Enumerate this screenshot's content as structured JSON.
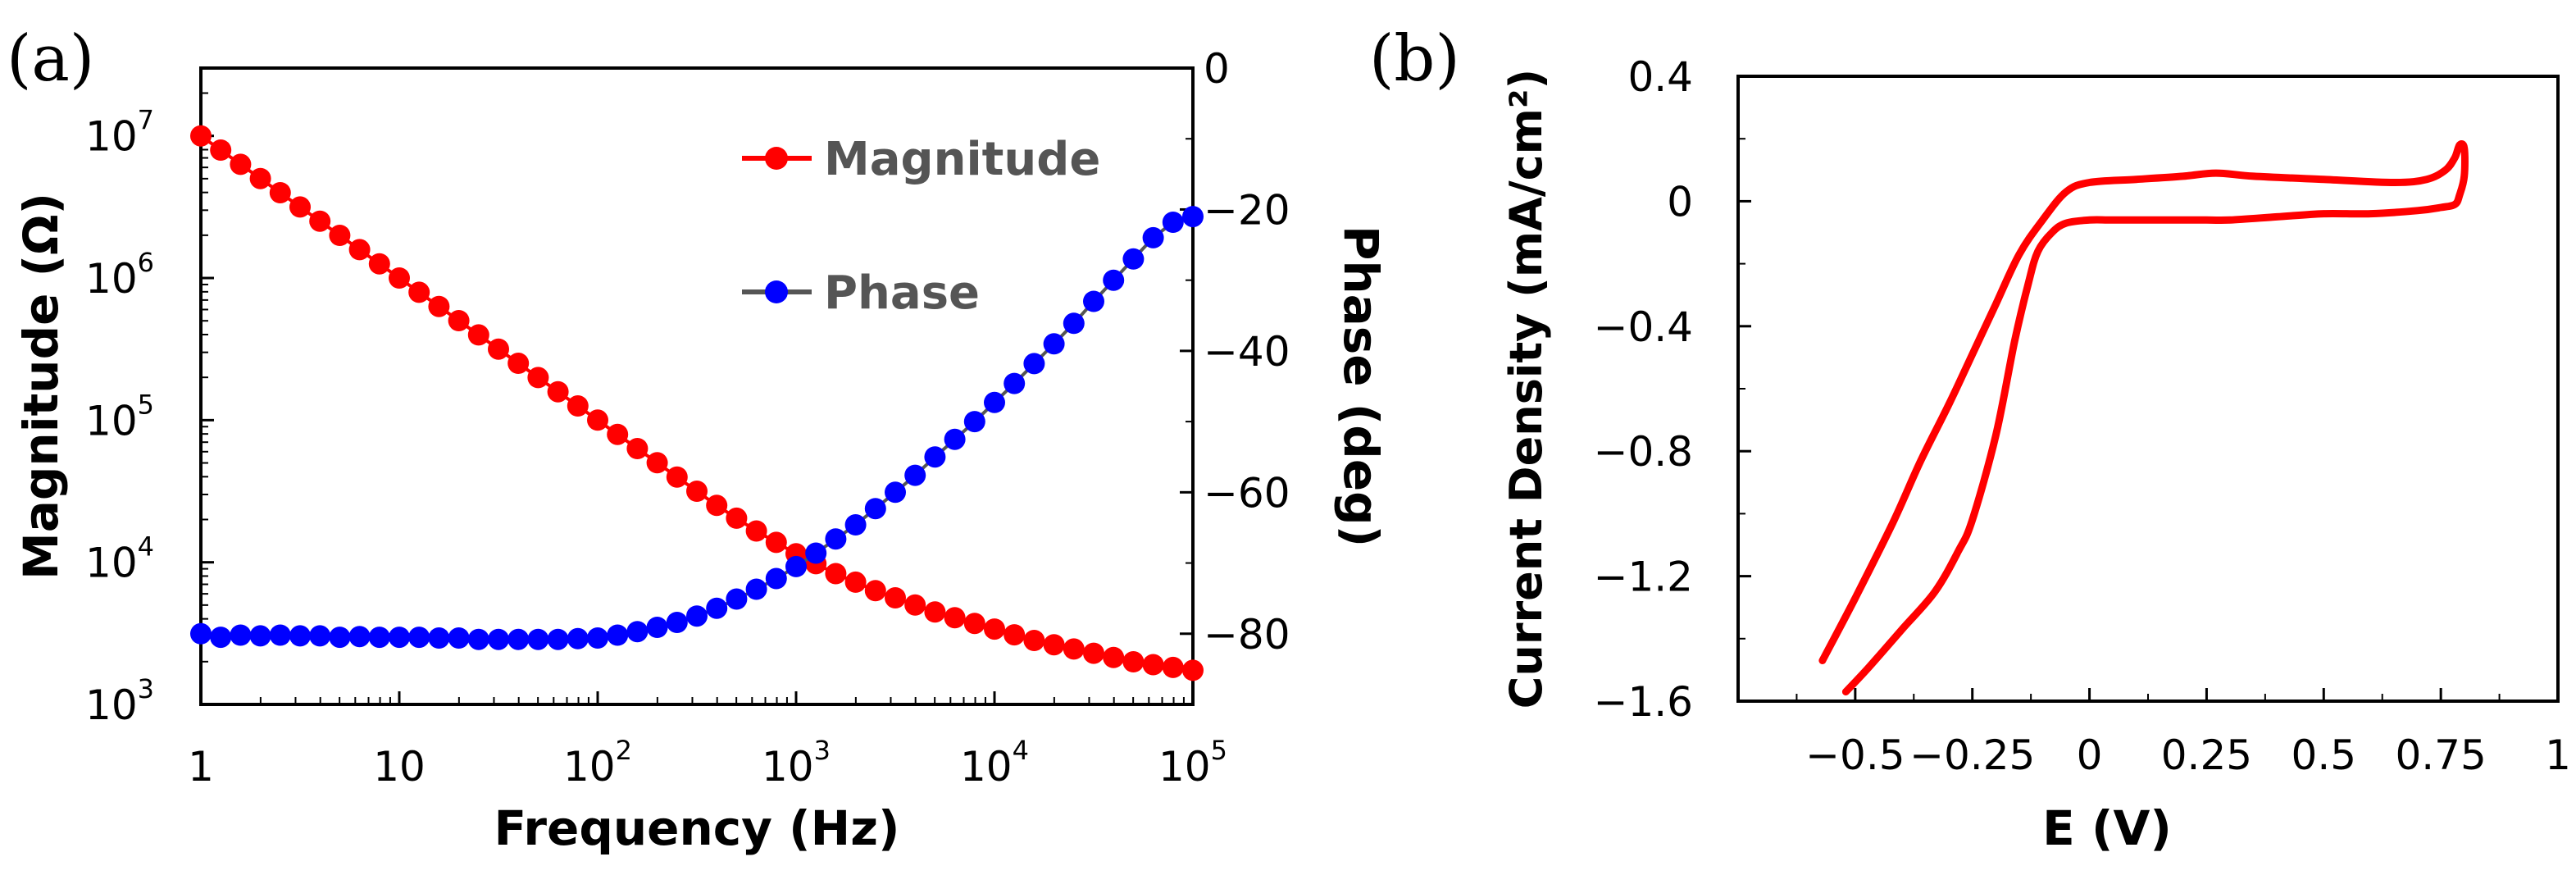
{
  "panel_labels": {
    "a": "(a)",
    "b": "(b)"
  },
  "colors": {
    "magnitude": "#ff0000",
    "phase": "#0000ff",
    "cv": "#ff0000",
    "axis": "#000000",
    "legend_text": "#555555"
  },
  "chart_data": [
    {
      "id": "a",
      "type": "line",
      "x_scale": "log",
      "y_scale_left": "log",
      "xlabel": "Frequency (Hz)",
      "ylabel": "Magnitude (Ω)",
      "y2label": "Phase (deg)",
      "xlim": [
        1,
        100000
      ],
      "ylim": [
        1000,
        30000000
      ],
      "y2lim": [
        -90,
        0
      ],
      "x_ticks": [
        {
          "v": 1,
          "base": "1",
          "exp": ""
        },
        {
          "v": 10,
          "base": "10",
          "exp": ""
        },
        {
          "v": 100,
          "base": "10",
          "exp": "2"
        },
        {
          "v": 1000,
          "base": "10",
          "exp": "3"
        },
        {
          "v": 10000,
          "base": "10",
          "exp": "4"
        },
        {
          "v": 100000,
          "base": "10",
          "exp": "5"
        }
      ],
      "y_ticks": [
        {
          "v": 1000,
          "base": "10",
          "exp": "3"
        },
        {
          "v": 10000,
          "base": "10",
          "exp": "4"
        },
        {
          "v": 100000,
          "base": "10",
          "exp": "5"
        },
        {
          "v": 1000000,
          "base": "10",
          "exp": "6"
        },
        {
          "v": 10000000,
          "base": "10",
          "exp": "7"
        }
      ],
      "y2_ticks": [
        {
          "v": 0,
          "label": "0"
        },
        {
          "v": -20,
          "label": "−20"
        },
        {
          "v": -40,
          "label": "−40"
        },
        {
          "v": -60,
          "label": "−60"
        },
        {
          "v": -80,
          "label": "−80"
        }
      ],
      "legend_position": "top-right",
      "series": [
        {
          "name": "Magnitude",
          "axis": "left",
          "color": "#ff0000",
          "x_log10": [
            0,
            0.1,
            0.2,
            0.3,
            0.4,
            0.5,
            0.6,
            0.7,
            0.8,
            0.9,
            1.0,
            1.1,
            1.2,
            1.3,
            1.4,
            1.5,
            1.6,
            1.7,
            1.8,
            1.9,
            2.0,
            2.1,
            2.2,
            2.3,
            2.4,
            2.5,
            2.6,
            2.7,
            2.8,
            2.9,
            3.0,
            3.1,
            3.2,
            3.3,
            3.4,
            3.5,
            3.6,
            3.7,
            3.8,
            3.9,
            4.0,
            4.1,
            4.2,
            4.3,
            4.4,
            4.5,
            4.6,
            4.7,
            4.8,
            4.9,
            5.0
          ],
          "y_log10": [
            7.0,
            6.9,
            6.8,
            6.7,
            6.6,
            6.5,
            6.4,
            6.3,
            6.2,
            6.1,
            6.0,
            5.9,
            5.8,
            5.7,
            5.6,
            5.5,
            5.4,
            5.3,
            5.2,
            5.1,
            5.0,
            4.9,
            4.8,
            4.7,
            4.6,
            4.5,
            4.4,
            4.31,
            4.22,
            4.14,
            4.06,
            3.99,
            3.92,
            3.86,
            3.8,
            3.75,
            3.7,
            3.65,
            3.61,
            3.57,
            3.53,
            3.49,
            3.45,
            3.42,
            3.39,
            3.36,
            3.33,
            3.3,
            3.28,
            3.26,
            3.24
          ]
        },
        {
          "name": "Phase",
          "axis": "right",
          "color": "#0000ff",
          "x_log10": [
            0,
            0.1,
            0.2,
            0.3,
            0.4,
            0.5,
            0.6,
            0.7,
            0.8,
            0.9,
            1.0,
            1.1,
            1.2,
            1.3,
            1.4,
            1.5,
            1.6,
            1.7,
            1.8,
            1.9,
            2.0,
            2.1,
            2.2,
            2.3,
            2.4,
            2.5,
            2.6,
            2.7,
            2.8,
            2.9,
            3.0,
            3.1,
            3.2,
            3.3,
            3.4,
            3.5,
            3.6,
            3.7,
            3.8,
            3.9,
            4.0,
            4.1,
            4.2,
            4.3,
            4.4,
            4.5,
            4.6,
            4.7,
            4.8,
            4.9,
            5.0
          ],
          "y": [
            -80.0,
            -80.5,
            -80.2,
            -80.3,
            -80.2,
            -80.3,
            -80.3,
            -80.5,
            -80.4,
            -80.5,
            -80.5,
            -80.5,
            -80.6,
            -80.6,
            -80.8,
            -80.8,
            -80.8,
            -80.8,
            -80.8,
            -80.7,
            -80.6,
            -80.2,
            -79.7,
            -79.1,
            -78.4,
            -77.5,
            -76.4,
            -75.1,
            -73.7,
            -72.2,
            -70.5,
            -68.6,
            -66.6,
            -64.6,
            -62.3,
            -60.0,
            -57.6,
            -55.0,
            -52.5,
            -50.0,
            -47.3,
            -44.6,
            -41.8,
            -39.0,
            -36.1,
            -33.0,
            -30.0,
            -27.0,
            -24.0,
            -21.8,
            -21.0
          ]
        }
      ]
    },
    {
      "id": "b",
      "type": "line",
      "xlabel": "E (V)",
      "ylabel": "Current Density (mA/cm²)",
      "xlim": [
        -0.75,
        1.0
      ],
      "ylim": [
        -1.6,
        0.4
      ],
      "x_ticks": [
        {
          "v": -0.5,
          "label": "−0.5"
        },
        {
          "v": -0.25,
          "label": "−0.25"
        },
        {
          "v": 0,
          "label": "0"
        },
        {
          "v": 0.25,
          "label": "0.25"
        },
        {
          "v": 0.5,
          "label": "0.5"
        },
        {
          "v": 0.75,
          "label": "0.75"
        },
        {
          "v": 1.0,
          "label": "1"
        }
      ],
      "y_ticks": [
        {
          "v": 0.4,
          "label": "0.4"
        },
        {
          "v": 0,
          "label": "0"
        },
        {
          "v": -0.4,
          "label": "−0.4"
        },
        {
          "v": -0.8,
          "label": "−0.8"
        },
        {
          "v": -1.2,
          "label": "−1.2"
        },
        {
          "v": -1.6,
          "label": "−1.6"
        }
      ],
      "series": [
        {
          "color": "#ff0000",
          "x": [
            -0.57,
            -0.5,
            -0.42,
            -0.36,
            -0.3,
            -0.25,
            -0.2,
            -0.15,
            -0.1,
            -0.05,
            0.0,
            0.1,
            0.2,
            0.27,
            0.35,
            0.5,
            0.65,
            0.72,
            0.76,
            0.78,
            0.79,
            0.8,
            0.8,
            0.79,
            0.78,
            0.75,
            0.7,
            0.6,
            0.5,
            0.4,
            0.3,
            0.25,
            0.15,
            0.05,
            0.0,
            -0.05,
            -0.08,
            -0.11,
            -0.13,
            -0.16,
            -0.2,
            -0.25,
            -0.28,
            -0.33,
            -0.4,
            -0.47,
            -0.52
          ],
          "y": [
            -1.47,
            -1.27,
            -1.03,
            -0.83,
            -0.65,
            -0.49,
            -0.33,
            -0.17,
            -0.06,
            0.03,
            0.06,
            0.07,
            0.08,
            0.09,
            0.08,
            0.07,
            0.06,
            0.07,
            0.1,
            0.14,
            0.18,
            0.17,
            0.08,
            0.02,
            -0.01,
            -0.02,
            -0.03,
            -0.04,
            -0.04,
            -0.05,
            -0.06,
            -0.06,
            -0.06,
            -0.06,
            -0.06,
            -0.07,
            -0.1,
            -0.16,
            -0.26,
            -0.45,
            -0.75,
            -1.02,
            -1.12,
            -1.25,
            -1.37,
            -1.49,
            -1.57
          ]
        }
      ]
    }
  ]
}
